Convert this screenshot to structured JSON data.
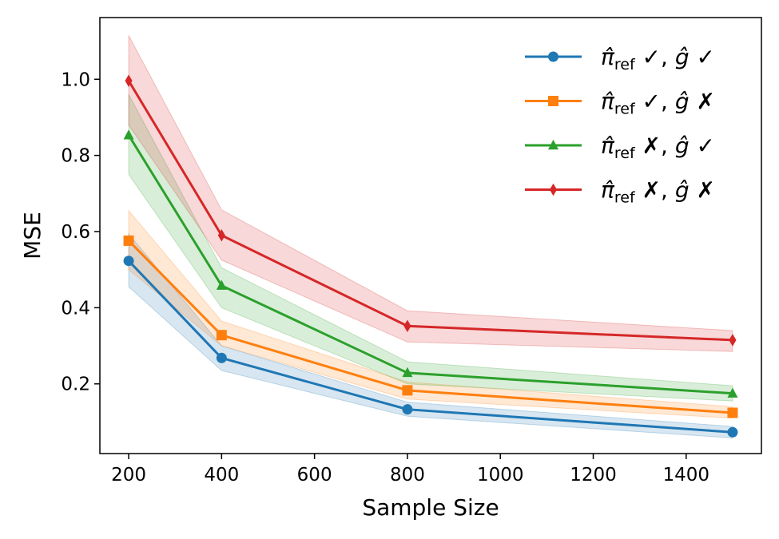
{
  "chart_data": {
    "type": "line",
    "title": "",
    "xlabel": "Sample Size",
    "ylabel": "MSE",
    "x": [
      200,
      400,
      800,
      1500
    ],
    "xlim": [
      138,
      1562
    ],
    "ylim": [
      0.017,
      1.162
    ],
    "xticks": [
      200,
      400,
      600,
      800,
      1000,
      1200,
      1400
    ],
    "yticks": [
      0.2,
      0.4,
      0.6,
      0.8,
      1.0
    ],
    "grid": false,
    "legend_position": "top-right",
    "series": [
      {
        "name": "π̂ref ✓, ĝ ✓",
        "pi_mark": "✓",
        "g_mark": "✓",
        "color": "#1f77b4",
        "marker": "circle",
        "values": [
          0.523,
          0.268,
          0.133,
          0.073
        ],
        "lower": [
          0.455,
          0.235,
          0.115,
          0.058
        ],
        "upper": [
          0.594,
          0.3,
          0.152,
          0.088
        ]
      },
      {
        "name": "π̂ref ✓, ĝ ✗",
        "pi_mark": "✓",
        "g_mark": "✗",
        "color": "#ff7f0e",
        "marker": "square",
        "values": [
          0.576,
          0.328,
          0.183,
          0.124
        ],
        "lower": [
          0.5,
          0.3,
          0.16,
          0.11
        ],
        "upper": [
          0.655,
          0.365,
          0.205,
          0.14
        ]
      },
      {
        "name": "π̂ref ✗, ĝ ✓",
        "pi_mark": "✗",
        "g_mark": "✓",
        "color": "#2ca02c",
        "marker": "triangle",
        "values": [
          0.853,
          0.458,
          0.229,
          0.175
        ],
        "lower": [
          0.75,
          0.4,
          0.2,
          0.155
        ],
        "upper": [
          0.96,
          0.505,
          0.258,
          0.195
        ]
      },
      {
        "name": "π̂ref ✗, ĝ ✗",
        "pi_mark": "✗",
        "g_mark": "✗",
        "color": "#d62728",
        "marker": "diamond",
        "values": [
          0.996,
          0.59,
          0.352,
          0.315
        ],
        "lower": [
          0.88,
          0.525,
          0.31,
          0.285
        ],
        "upper": [
          1.115,
          0.657,
          0.392,
          0.34
        ]
      }
    ]
  }
}
